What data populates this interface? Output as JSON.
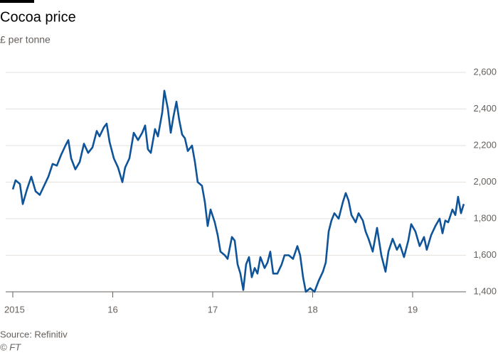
{
  "chart_data": {
    "type": "line",
    "title": "Cocoa price",
    "subtitle": "£ per tonne",
    "source": "Source: Refinitiv",
    "credit": "© FT",
    "color": "#0f5499",
    "grid": true,
    "xlim": [
      2014.929,
      2019.534
    ],
    "ylim": [
      1400,
      2600
    ],
    "xticks": [
      2015,
      {
        "value": 2016,
        "label": "16"
      },
      {
        "value": 2017,
        "label": "17"
      },
      {
        "value": 2018,
        "label": "18"
      },
      {
        "value": 2019,
        "label": "19"
      }
    ],
    "yticks": [
      {
        "value": 1400,
        "label": "1,400"
      },
      {
        "value": 1600,
        "label": "1,600"
      },
      {
        "value": 1800,
        "label": "1,800"
      },
      {
        "value": 2000,
        "label": "2,000"
      },
      {
        "value": 2200,
        "label": "2,200"
      },
      {
        "value": 2400,
        "label": "2,400"
      },
      {
        "value": 2600,
        "label": "2,600"
      }
    ],
    "x": [
      2015.0,
      2015.028,
      2015.071,
      2015.1,
      2015.142,
      2015.185,
      2015.228,
      2015.27,
      2015.313,
      2015.356,
      2015.399,
      2015.441,
      2015.484,
      2015.527,
      2015.555,
      2015.584,
      2015.626,
      2015.669,
      2015.712,
      2015.754,
      2015.797,
      2015.84,
      2015.868,
      2015.911,
      2015.939,
      2015.968,
      2016.011,
      2016.053,
      2016.096,
      2016.124,
      2016.167,
      2016.21,
      2016.253,
      2016.295,
      2016.324,
      2016.352,
      2016.381,
      2016.423,
      2016.452,
      2016.495,
      2016.516,
      2016.552,
      2016.58,
      2016.608,
      2016.637,
      2016.665,
      2016.694,
      2016.722,
      2016.751,
      2016.793,
      2016.822,
      2016.85,
      2016.893,
      2016.922,
      2016.95,
      2016.979,
      2017.021,
      2017.05,
      2017.078,
      2017.121,
      2017.149,
      2017.192,
      2017.22,
      2017.249,
      2017.277,
      2017.306,
      2017.334,
      2017.363,
      2017.391,
      2017.42,
      2017.448,
      2017.477,
      2017.519,
      2017.548,
      2017.576,
      2017.605,
      2017.647,
      2017.69,
      2017.719,
      2017.761,
      2017.804,
      2017.847,
      2017.875,
      2017.904,
      2017.932,
      2017.975,
      2018.018,
      2018.06,
      2018.103,
      2018.131,
      2018.16,
      2018.188,
      2018.217,
      2018.26,
      2018.302,
      2018.331,
      2018.359,
      2018.388,
      2018.43,
      2018.459,
      2018.502,
      2018.53,
      2018.559,
      2018.601,
      2018.644,
      2018.687,
      2018.729,
      2018.758,
      2018.8,
      2018.843,
      2018.872,
      2018.914,
      2018.957,
      2018.986,
      2019.028,
      2019.071,
      2019.114,
      2019.142,
      2019.185,
      2019.228,
      2019.27,
      2019.299,
      2019.327,
      2019.356,
      2019.398,
      2019.427,
      2019.455,
      2019.484,
      2019.512
    ],
    "values": [
      1960,
      2010,
      1990,
      1880,
      1960,
      2030,
      1950,
      1930,
      1980,
      2030,
      2100,
      2090,
      2150,
      2200,
      2230,
      2130,
      2070,
      2110,
      2210,
      2160,
      2190,
      2280,
      2250,
      2300,
      2320,
      2220,
      2130,
      2080,
      2000,
      2080,
      2130,
      2270,
      2230,
      2270,
      2310,
      2180,
      2160,
      2290,
      2250,
      2380,
      2500,
      2400,
      2270,
      2360,
      2440,
      2340,
      2260,
      2240,
      2170,
      2200,
      2110,
      2000,
      1980,
      1890,
      1760,
      1850,
      1780,
      1710,
      1620,
      1600,
      1580,
      1700,
      1680,
      1550,
      1500,
      1410,
      1550,
      1590,
      1480,
      1530,
      1500,
      1590,
      1530,
      1560,
      1620,
      1500,
      1500,
      1550,
      1600,
      1600,
      1580,
      1650,
      1600,
      1480,
      1400,
      1420,
      1400,
      1460,
      1510,
      1560,
      1730,
      1790,
      1830,
      1800,
      1890,
      1940,
      1900,
      1820,
      1780,
      1830,
      1790,
      1730,
      1690,
      1620,
      1750,
      1600,
      1510,
      1620,
      1690,
      1630,
      1660,
      1590,
      1680,
      1770,
      1730,
      1650,
      1700,
      1630,
      1710,
      1760,
      1800,
      1720,
      1790,
      1780,
      1850,
      1820,
      1920,
      1830,
      1880
    ]
  }
}
